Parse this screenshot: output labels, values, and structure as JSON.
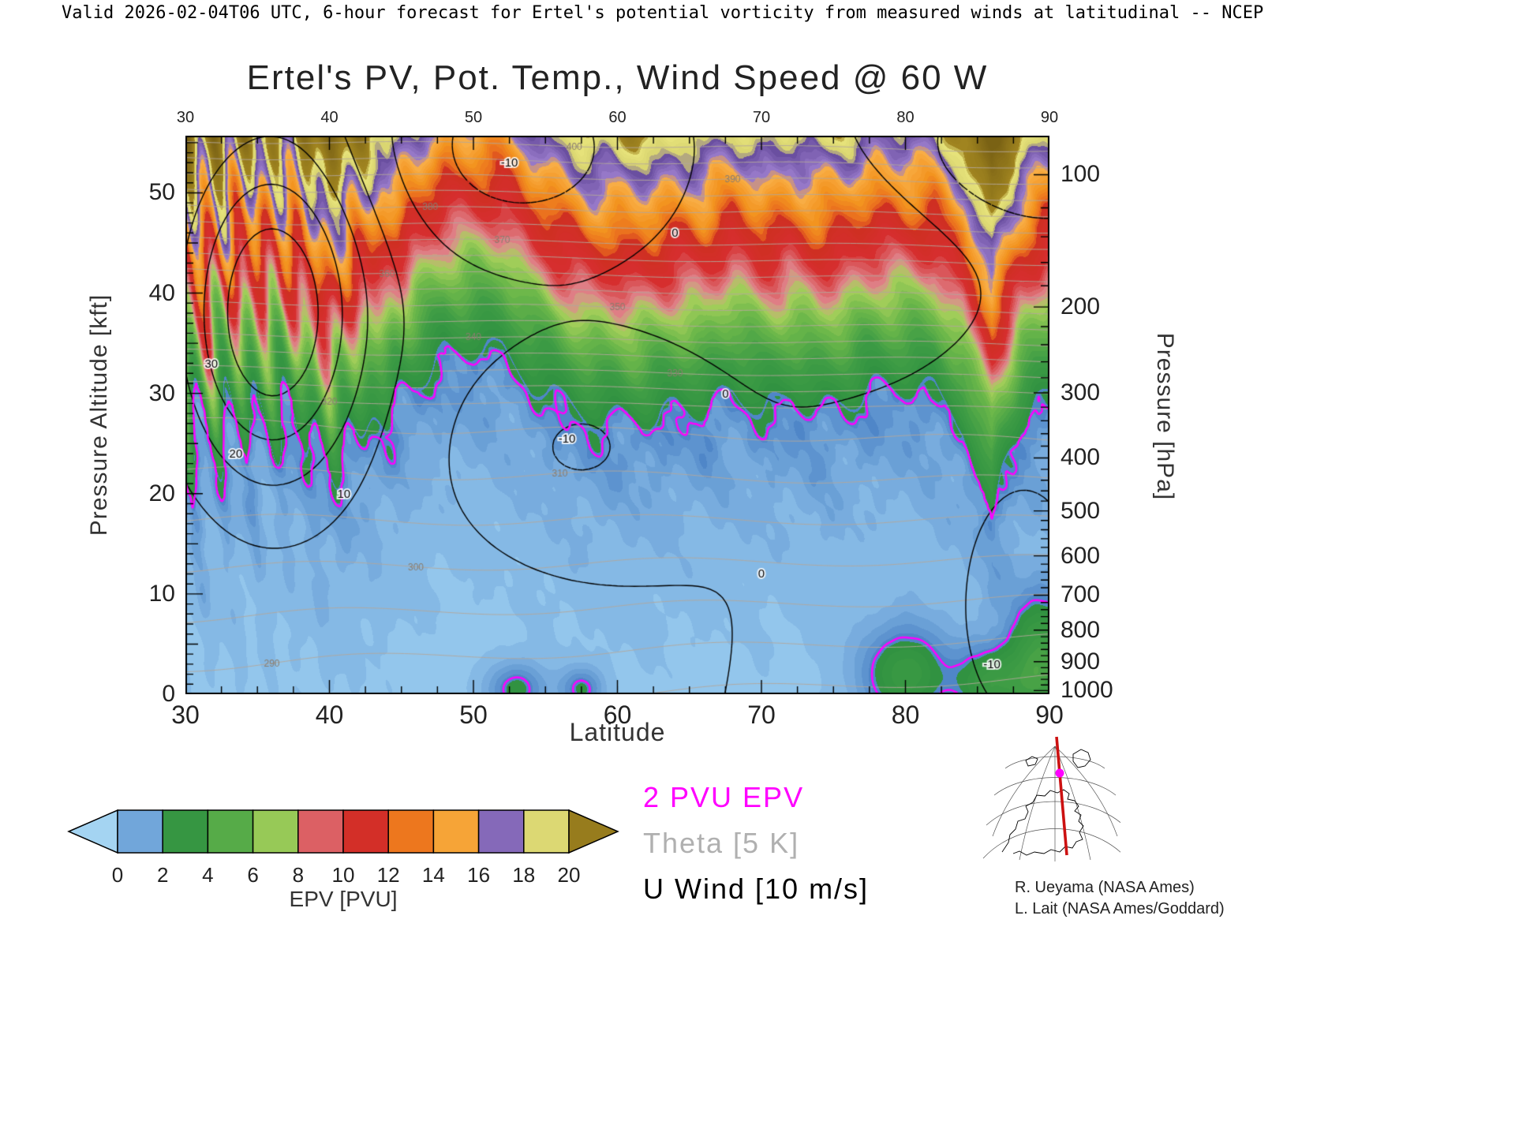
{
  "header": {
    "text": "Valid 2026-02-04T06 UTC, 6-hour forecast for Ertel's potential vorticity from measured winds at latitudinal -- NCEP"
  },
  "axes": {
    "x_label": "Latitude",
    "y_left_label": "Pressure Altitude [kft]",
    "y_right_label": "Pressure [hPa]",
    "x_minor_step": 2.5,
    "z_minor_step_kft": 1,
    "pressure_minor_step_hpa": 20
  },
  "legend": [
    {
      "label": "2 PVU EPV",
      "color": "#ff00ff"
    },
    {
      "label": "Theta [5 K]",
      "color": "#b0b0b0"
    },
    {
      "label": "U Wind [10 m/s]",
      "color": "#000000"
    }
  ],
  "colorbar": {
    "label": "EPV [PVU]",
    "ticks": [
      0,
      2,
      4,
      6,
      8,
      10,
      12,
      14,
      16,
      18,
      20
    ]
  },
  "credits": [
    "R. Ueyama (NASA Ames)",
    "L. Lait (NASA Ames/Goddard)"
  ],
  "inset_map": {
    "line_color": "#cc1111",
    "marker_color": "#ff00ff"
  },
  "chart_data": {
    "type": "heatmap",
    "title": "Ertel's PV, Pot. Temp., Wind Speed @ 60 W",
    "xlabel": "Latitude",
    "ylabel": "Pressure Altitude [kft]",
    "ylabel_right": "Pressure [hPa]",
    "fill_field": "Ertel potential vorticity [PVU]",
    "x_range": [
      30,
      90
    ],
    "z_range_kft": [
      0,
      55.7
    ],
    "x_ticks": [
      30,
      40,
      50,
      60,
      70,
      80,
      90
    ],
    "z_ticks_kft": [
      0,
      10,
      20,
      30,
      40,
      50
    ],
    "pressure_ticks_hpa": [
      100,
      200,
      300,
      400,
      500,
      600,
      700,
      800,
      900,
      1000
    ],
    "quantize_pvu": 0.4,
    "palette_anchors": [
      [
        -2,
        "#b4e2f8"
      ],
      [
        0,
        "#93c6ec"
      ],
      [
        2,
        "#4f86c8"
      ],
      [
        2.2,
        "#2f9140"
      ],
      [
        4,
        "#3f9d45"
      ],
      [
        6,
        "#6db84a"
      ],
      [
        7.4,
        "#a8d05c"
      ],
      [
        8.2,
        "#e08890"
      ],
      [
        10,
        "#d62e2e"
      ],
      [
        12,
        "#cf2f22"
      ],
      [
        12.6,
        "#ea6c1e"
      ],
      [
        14,
        "#f3941f"
      ],
      [
        15.6,
        "#f8ad45"
      ],
      [
        16.4,
        "#9678c8"
      ],
      [
        18,
        "#6a4fa0"
      ],
      [
        18.6,
        "#d8d470"
      ],
      [
        20,
        "#e6e27a"
      ],
      [
        20.8,
        "#a08420"
      ],
      [
        26,
        "#7a6214"
      ]
    ],
    "lat_grid": [
      30,
      32,
      34,
      36,
      38,
      40,
      42,
      44,
      46,
      48,
      50,
      52,
      54,
      56,
      58,
      60,
      62,
      64,
      66,
      68,
      70,
      72,
      74,
      76,
      78,
      80,
      82,
      84,
      86,
      88,
      90
    ],
    "tropopause_2pvu_kft": [
      24,
      25,
      27,
      28,
      27,
      22,
      25,
      27,
      31,
      34.5,
      34.5,
      34,
      30,
      28.5,
      27.5,
      28,
      27.5,
      28,
      27,
      29.5,
      28.5,
      30,
      28.5,
      28.5,
      29.5,
      29.5,
      30.5,
      27,
      19,
      26,
      29
    ],
    "epv_profile": {
      "strat_linear": 0.45,
      "strat_quad": 0.007,
      "trop_efold_kft": 10
    },
    "fold_streaks": {
      "max_lat": 47,
      "amplitude_kft": 6,
      "lat_freq": 3.1,
      "z_tilt": 0.22
    },
    "band_wiggle": [
      [
        1.2,
        1.7,
        0.3
      ],
      [
        0.8,
        0.53,
        0
      ]
    ],
    "turbulence": [
      [
        0.5,
        0.9,
        0.5
      ],
      [
        0.3,
        2.3,
        -0.8
      ],
      [
        0.2,
        4.7,
        1.9
      ]
    ],
    "surface_epv_blobs": [
      [
        80,
        2,
        2.2,
        3.5,
        3.2
      ],
      [
        86,
        1,
        1.8,
        2.6,
        3.0
      ],
      [
        89.5,
        3,
        1.6,
        5,
        4
      ],
      [
        53,
        0.5,
        1.4,
        1.8,
        2.4
      ],
      [
        57.5,
        0.5,
        1.0,
        1.5,
        2.2
      ]
    ],
    "pv2_level": 2,
    "theta": {
      "interval_K": 5,
      "range_K": [
        260,
        465
      ],
      "sfc_K": 285,
      "trop_lapse_K_per_kft": 1.15,
      "trop_top_kft": 28,
      "strat_lapse_K_per_kft": 3.1,
      "labels": [
        [
          290,
          36
        ],
        [
          300,
          46
        ],
        [
          310,
          56
        ],
        [
          320,
          40
        ],
        [
          330,
          64
        ],
        [
          340,
          50
        ],
        [
          350,
          60
        ],
        [
          360,
          44
        ],
        [
          370,
          52
        ],
        [
          380,
          47
        ],
        [
          390,
          68
        ],
        [
          400,
          57
        ],
        [
          410,
          74
        ]
      ]
    },
    "uwind": {
      "interval_ms": 10,
      "levels": [
        -30,
        -20,
        -10,
        0,
        10,
        20,
        30,
        40
      ],
      "background": [
        6,
        40,
        0.15,
        55,
        0.35,
        60
      ],
      "cells": [
        [
          45,
          36,
          38,
          4.5,
          12
        ],
        [
          12,
          79,
          46,
          6,
          8
        ],
        [
          -22,
          53,
          55,
          7,
          8
        ],
        [
          -15,
          85,
          53,
          6,
          6
        ],
        [
          -14,
          57,
          25,
          6,
          7
        ],
        [
          -14,
          88,
          8,
          3.5,
          10
        ]
      ],
      "labels": [
        [
          "30",
          31.8,
          33
        ],
        [
          "20",
          33.5,
          24
        ],
        [
          "10",
          41,
          20
        ],
        [
          "-10",
          56.5,
          25.5
        ],
        [
          "-10",
          52.5,
          53
        ],
        [
          "0",
          67.5,
          30
        ],
        [
          "0",
          70,
          12
        ],
        [
          "0",
          64,
          46
        ],
        [
          "-10",
          86,
          3
        ]
      ]
    }
  }
}
